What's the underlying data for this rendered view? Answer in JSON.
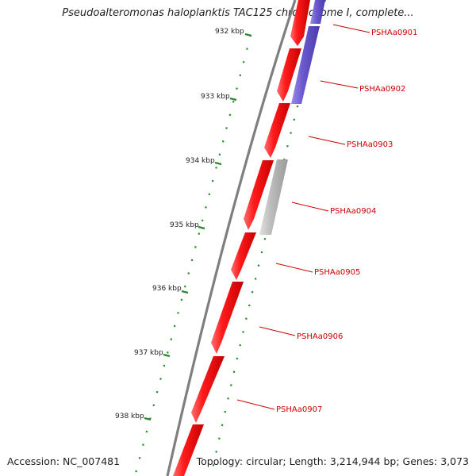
{
  "title": "Pseudoalteromonas haloplanktis TAC125 chromosome I, complete...",
  "footer": {
    "accession": "Accession: NC_007481",
    "topology": "Topology: circular; Length: 3,214,944 bp; Genes: 3,073"
  },
  "colors": {
    "backbone": "#8a8a8a",
    "gene_forward": "#ee1111",
    "gene_blue": "#6a5acd",
    "gene_grey": "#b8b8b8",
    "tick": "#2a8a2a",
    "label": "#cc0000"
  },
  "tick_labels": [
    "932 kbp",
    "933 kbp",
    "934 kbp",
    "935 kbp",
    "936 kbp",
    "937 kbp",
    "938 kbp"
  ],
  "gene_labels": [
    "PSHAa0901",
    "PSHAa0902",
    "PSHAa0903",
    "PSHAa0904",
    "PSHAa0905",
    "PSHAa0906",
    "PSHAa0907"
  ]
}
